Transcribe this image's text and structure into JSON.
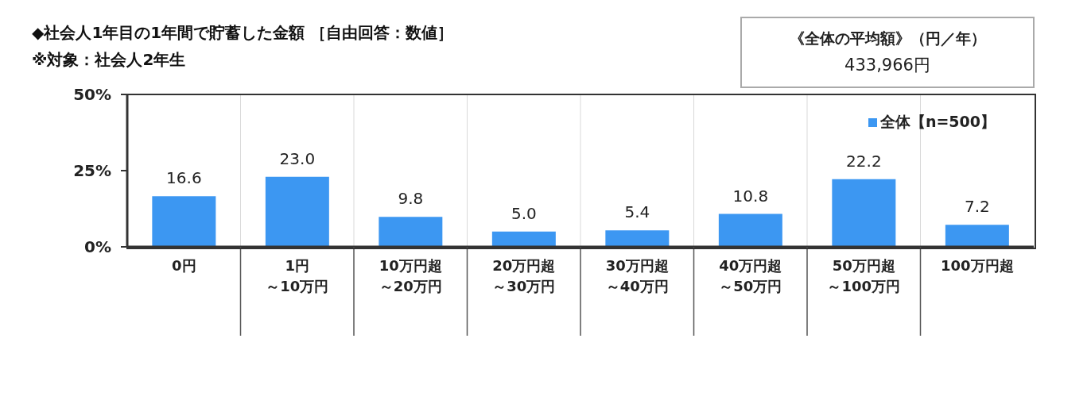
{
  "chart_data": {
    "type": "bar",
    "title": "◆社会人1年目の1年間で貯蓄した金額 ［自由回答：数値］",
    "subtitle": "※対象：社会人2年生",
    "annotations": [
      "《全体の平均額》（円／年）",
      "433,966円"
    ],
    "categories": [
      "0円",
      "1円～10万円",
      "10万円超～20万円",
      "20万円超～30万円",
      "30万円超～40万円",
      "40万円超～50万円",
      "50万円超～100万円",
      "100万円超"
    ],
    "series": [
      {
        "name": "全体【n=500】",
        "color": "#3c97f2",
        "values": [
          16.6,
          23.0,
          9.8,
          5.0,
          5.4,
          10.8,
          22.2,
          7.2
        ],
        "value_labels": [
          "16.6",
          "23.0",
          "9.8",
          "5.0",
          "5.4",
          "10.8",
          "22.2",
          "7.2"
        ]
      }
    ],
    "ylim": [
      0,
      50
    ],
    "yticks": [
      {
        "value": 0,
        "label": "0%"
      },
      {
        "value": 25,
        "label": "25%"
      },
      {
        "value": 50,
        "label": "50%"
      }
    ],
    "grid": "x",
    "legend": "top right"
  }
}
